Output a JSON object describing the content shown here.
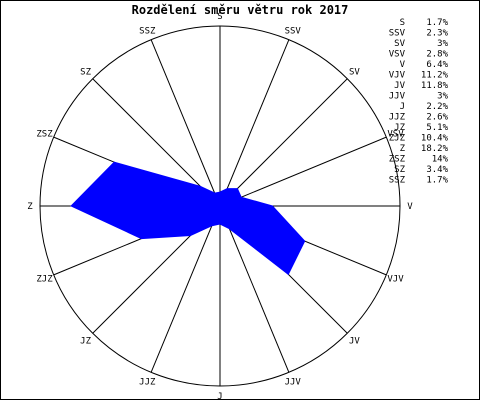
{
  "chart_data": {
    "type": "radar",
    "title": "Rozdělení směru větru rok 2017",
    "directions": [
      "S",
      "SSV",
      "SV",
      "VSV",
      "V",
      "VJV",
      "JV",
      "JJV",
      "J",
      "JJZ",
      "JZ",
      "ZJZ",
      "Z",
      "ZSZ",
      "SZ",
      "SSZ"
    ],
    "values": [
      1.7,
      2.3,
      3,
      2.8,
      6.4,
      11.2,
      11.8,
      3,
      2.2,
      2.6,
      5.1,
      10.4,
      18.2,
      14,
      3.4,
      1.7
    ],
    "legend_entries": [
      {
        "label": "S",
        "value": "1.7%"
      },
      {
        "label": "SSV",
        "value": "2.3%"
      },
      {
        "label": "SV",
        "value": "3%"
      },
      {
        "label": "VSV",
        "value": "2.8%"
      },
      {
        "label": "V",
        "value": "6.4%"
      },
      {
        "label": "VJV",
        "value": "11.2%"
      },
      {
        "label": "JV",
        "value": "11.8%"
      },
      {
        "label": "JJV",
        "value": "3%"
      },
      {
        "label": "J",
        "value": "2.2%"
      },
      {
        "label": "JJZ",
        "value": "2.6%"
      },
      {
        "label": "JZ",
        "value": "5.1%"
      },
      {
        "label": "ZJZ",
        "value": "10.4%"
      },
      {
        "label": "Z",
        "value": "18.2%"
      },
      {
        "label": "ZSZ",
        "value": "14%"
      },
      {
        "label": "SZ",
        "value": "3.4%"
      },
      {
        "label": "SSZ",
        "value": "1.7%"
      }
    ],
    "r_max": 22,
    "fill_color": "#0000ff",
    "line_color": "#000000",
    "legend_position": "top-right"
  }
}
